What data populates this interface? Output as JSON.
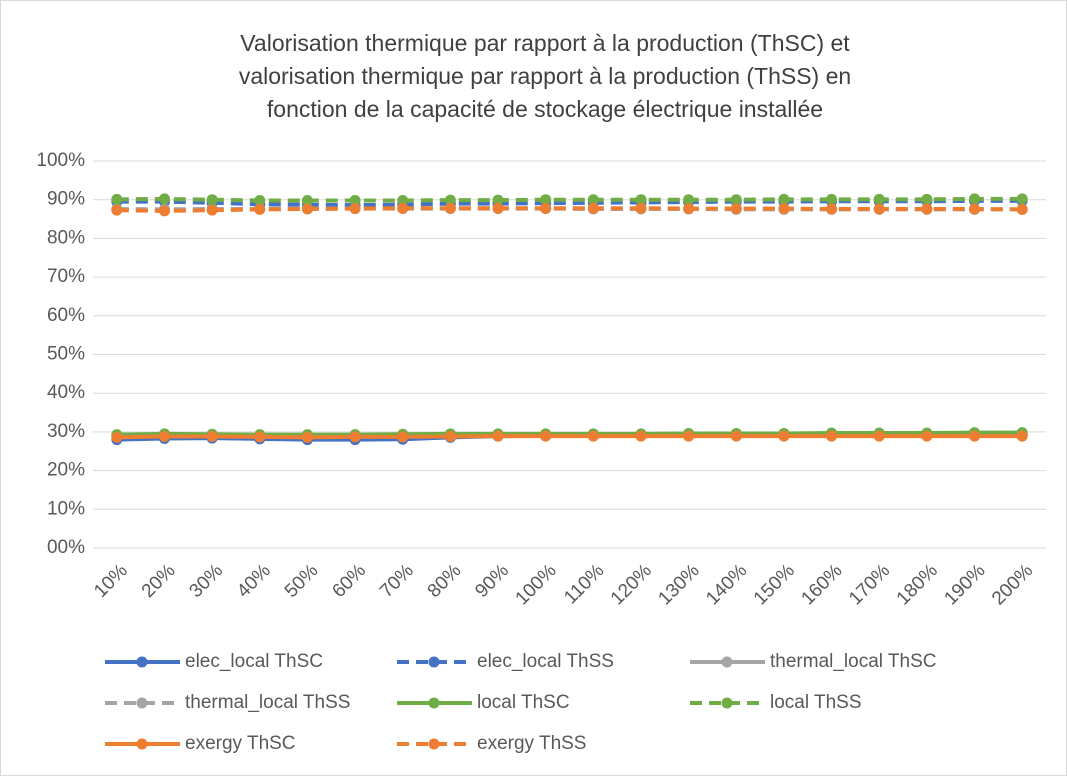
{
  "chart_data": {
    "type": "line",
    "title": [
      "Valorisation thermique par rapport à la production (ThSC) et",
      "valorisation thermique par rapport à la production (ThSS) en",
      "fonction de la capacité de stockage électrique installée"
    ],
    "categories": [
      "10%",
      "20%",
      "30%",
      "40%",
      "50%",
      "60%",
      "70%",
      "80%",
      "90%",
      "100%",
      "110%",
      "120%",
      "130%",
      "140%",
      "150%",
      "160%",
      "170%",
      "180%",
      "190%",
      "200%"
    ],
    "ylim": [
      0,
      100
    ],
    "yticks": [
      {
        "value": 0,
        "label": "00%"
      },
      {
        "value": 10,
        "label": "10%"
      },
      {
        "value": 20,
        "label": "20%"
      },
      {
        "value": 30,
        "label": "30%"
      },
      {
        "value": 40,
        "label": "40%"
      },
      {
        "value": 50,
        "label": "50%"
      },
      {
        "value": 60,
        "label": "60%"
      },
      {
        "value": 70,
        "label": "70%"
      },
      {
        "value": 80,
        "label": "80%"
      },
      {
        "value": 90,
        "label": "90%"
      },
      {
        "value": 100,
        "label": "100%"
      }
    ],
    "grid": true,
    "legend": "bottom",
    "series": [
      {
        "name": "elec_local ThSC",
        "color": "#4472c4",
        "dash": "solid",
        "values": [
          28,
          28.3,
          28.4,
          28.2,
          28,
          28,
          28.1,
          28.6,
          28.9,
          29,
          29,
          29,
          29,
          29,
          29.1,
          29.1,
          29.1,
          29.1,
          29.1,
          29.1
        ]
      },
      {
        "name": "elec_local ThSS",
        "color": "#4472c4",
        "dash": "dashed",
        "values": [
          89.5,
          89.5,
          89.2,
          88.8,
          88.7,
          88.6,
          88.7,
          89,
          89,
          89.1,
          89.2,
          89.3,
          89.4,
          89.5,
          89.5,
          89.6,
          89.6,
          89.6,
          89.7,
          89.7
        ]
      },
      {
        "name": "thermal_local ThSC",
        "color": "#a5a5a5",
        "dash": "solid",
        "values": [
          29,
          29.2,
          29.1,
          29,
          29,
          29,
          29.1,
          29.2,
          29.2,
          29.2,
          29.2,
          29.2,
          29.3,
          29.3,
          29.3,
          29.3,
          29.3,
          29.3,
          29.4,
          29.4
        ]
      },
      {
        "name": "thermal_local ThSS",
        "color": "#a5a5a5",
        "dash": "dashed",
        "values": [
          87.6,
          87.5,
          87.6,
          87.6,
          87.7,
          87.7,
          87.7,
          87.7,
          87.7,
          87.7,
          87.6,
          87.6,
          87.6,
          87.5,
          87.5,
          87.5,
          87.5,
          87.5,
          87.5,
          87.5
        ]
      },
      {
        "name": "local ThSC",
        "color": "#70ad47",
        "dash": "solid",
        "values": [
          29.3,
          29.5,
          29.4,
          29.3,
          29.3,
          29.3,
          29.4,
          29.5,
          29.5,
          29.5,
          29.5,
          29.5,
          29.6,
          29.6,
          29.6,
          29.7,
          29.7,
          29.7,
          29.8,
          29.8
        ]
      },
      {
        "name": "local ThSS",
        "color": "#70ad47",
        "dash": "dashed",
        "values": [
          90.1,
          90.2,
          90,
          89.8,
          89.8,
          89.8,
          89.8,
          89.9,
          89.9,
          90,
          90,
          90,
          90,
          90,
          90.1,
          90.1,
          90.1,
          90.1,
          90.2,
          90.2
        ]
      },
      {
        "name": "exergy ThSC",
        "color": "#ed7d31",
        "dash": "solid",
        "values": [
          28.6,
          28.8,
          28.8,
          28.7,
          28.6,
          28.7,
          28.7,
          28.8,
          28.9,
          28.9,
          28.9,
          28.9,
          28.9,
          28.9,
          28.9,
          28.9,
          28.9,
          28.9,
          28.9,
          28.9
        ]
      },
      {
        "name": "exergy ThSS",
        "color": "#ed7d31",
        "dash": "dashed",
        "values": [
          87.3,
          87.1,
          87.3,
          87.5,
          87.6,
          87.7,
          87.8,
          87.8,
          87.8,
          87.8,
          87.8,
          87.8,
          87.7,
          87.7,
          87.7,
          87.6,
          87.6,
          87.6,
          87.6,
          87.5
        ]
      }
    ]
  }
}
